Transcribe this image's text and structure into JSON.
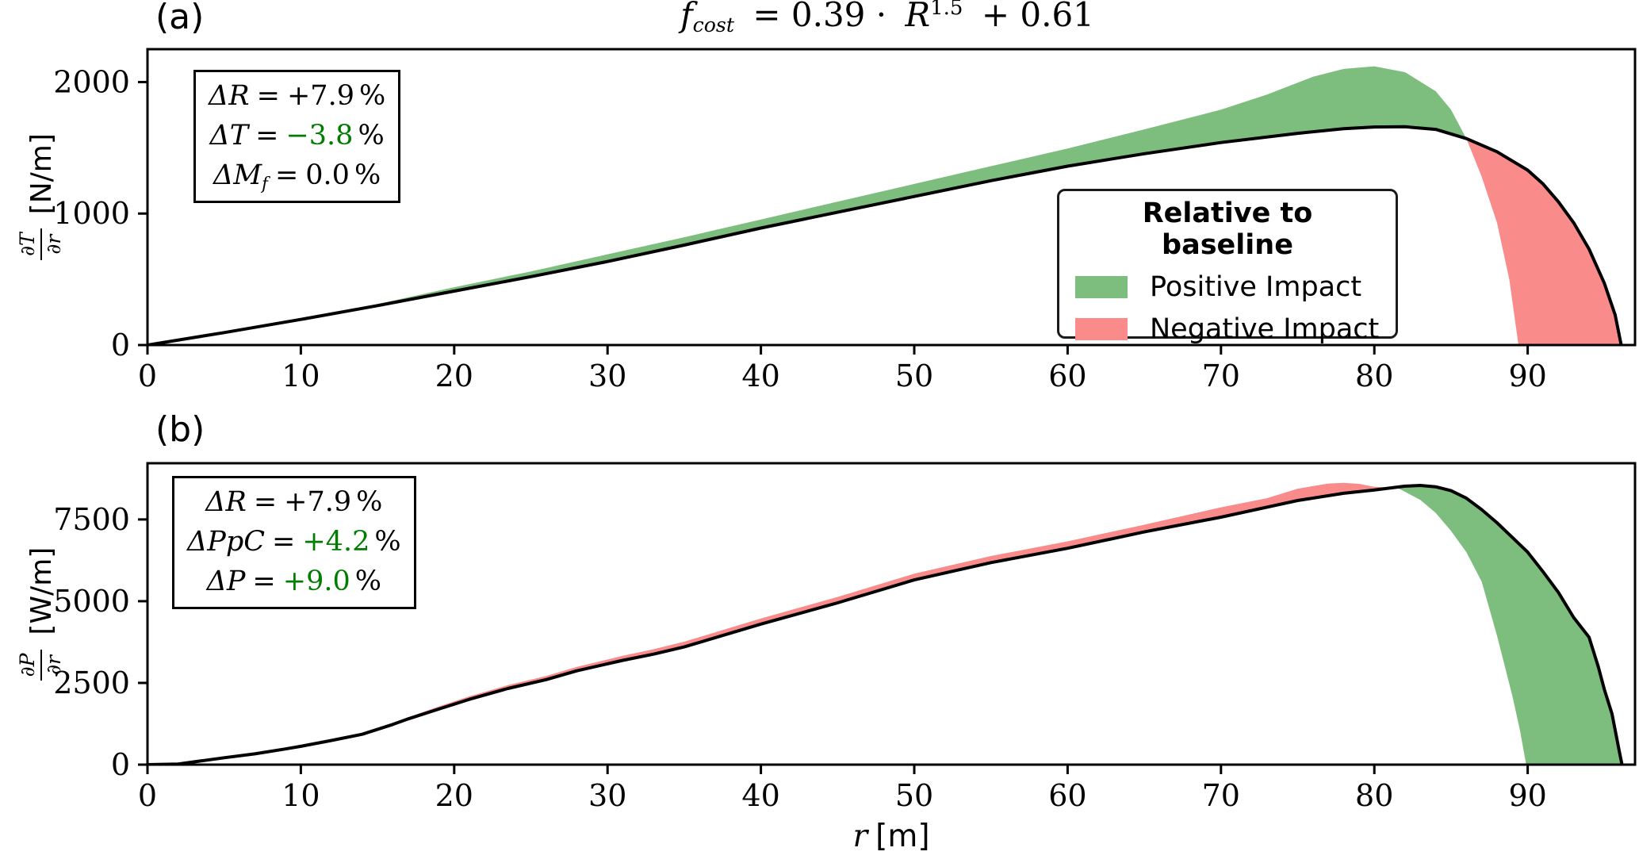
{
  "figure": {
    "title": {
      "lead": "f",
      "lead_sub": "cost",
      "eq": "= 0.39 ·",
      "rvar": "R",
      "tilde": "~",
      "exp": "1.5",
      "tail": "+ 0.61"
    },
    "xlabel": {
      "var": "r",
      "unit": "[m]"
    }
  },
  "colors": {
    "positive": "#7dbd7d",
    "negative": "#f98b8b",
    "design_line": "#000000",
    "annotation_green": "#007d00",
    "axis": "#000000",
    "background": "#ffffff"
  },
  "legend": {
    "title": "Relative to baseline",
    "position": "inside panel (a), right",
    "items": [
      {
        "label": "Positive Impact",
        "color_key": "positive"
      },
      {
        "label": "Negative Impact",
        "color_key": "negative"
      }
    ]
  },
  "chart_data": [
    {
      "type": "area",
      "label": "(a)",
      "ylabel": {
        "num": "∂T",
        "den": "∂r",
        "unit": "[N/m]"
      },
      "xlim": [
        0,
        97
      ],
      "ylim": [
        0,
        2250
      ],
      "xticks": [
        0,
        10,
        20,
        30,
        40,
        50,
        60,
        70,
        80,
        90
      ],
      "yticks": [
        0,
        1000,
        2000
      ],
      "grid": false,
      "positive_impact_when_design": "below",
      "annotation": [
        {
          "lhs": "ΔR",
          "sub": "",
          "eq": "=",
          "value": "+7.9",
          "unit": "%",
          "green": false
        },
        {
          "lhs": "ΔT",
          "sub": "",
          "eq": "=",
          "value": "−3.8",
          "unit": "%",
          "green": true
        },
        {
          "lhs": "ΔM",
          "sub": "f",
          "eq": "=",
          "value": "0.0",
          "unit": "%",
          "green": false
        }
      ],
      "series": [
        {
          "name": "baseline",
          "points": [
            [
              0,
              0
            ],
            [
              5,
              95
            ],
            [
              10,
              200
            ],
            [
              15,
              312
            ],
            [
              20,
              440
            ],
            [
              25,
              560
            ],
            [
              30,
              690
            ],
            [
              35,
              820
            ],
            [
              40,
              955
            ],
            [
              45,
              1090
            ],
            [
              50,
              1225
            ],
            [
              55,
              1360
            ],
            [
              60,
              1495
            ],
            [
              65,
              1640
            ],
            [
              70,
              1790
            ],
            [
              73,
              1905
            ],
            [
              76,
              2040
            ],
            [
              78,
              2100
            ],
            [
              80,
              2120
            ],
            [
              82,
              2075
            ],
            [
              84,
              1930
            ],
            [
              85,
              1790
            ],
            [
              86,
              1570
            ],
            [
              87,
              1280
            ],
            [
              88,
              930
            ],
            [
              88.8,
              500
            ],
            [
              89.4,
              0
            ]
          ]
        },
        {
          "name": "design",
          "points": [
            [
              0,
              0
            ],
            [
              5,
              95
            ],
            [
              10,
              195
            ],
            [
              15,
              300
            ],
            [
              20,
              410
            ],
            [
              25,
              520
            ],
            [
              30,
              635
            ],
            [
              35,
              760
            ],
            [
              40,
              890
            ],
            [
              45,
              1010
            ],
            [
              50,
              1130
            ],
            [
              55,
              1250
            ],
            [
              60,
              1360
            ],
            [
              65,
              1455
            ],
            [
              70,
              1540
            ],
            [
              75,
              1610
            ],
            [
              78,
              1645
            ],
            [
              80,
              1658
            ],
            [
              82,
              1660
            ],
            [
              84,
              1640
            ],
            [
              86,
              1570
            ],
            [
              88,
              1470
            ],
            [
              90,
              1330
            ],
            [
              91,
              1225
            ],
            [
              92,
              1090
            ],
            [
              93,
              930
            ],
            [
              94,
              730
            ],
            [
              95,
              470
            ],
            [
              95.7,
              230
            ],
            [
              96.1,
              0
            ]
          ]
        }
      ]
    },
    {
      "type": "area",
      "label": "(b)",
      "ylabel": {
        "num": "∂P",
        "den": "∂r",
        "unit": "[W/m]"
      },
      "xlim": [
        0,
        97
      ],
      "ylim": [
        0,
        9220
      ],
      "xticks": [
        0,
        10,
        20,
        30,
        40,
        50,
        60,
        70,
        80,
        90
      ],
      "yticks": [
        0,
        2500,
        5000,
        7500
      ],
      "grid": false,
      "positive_impact_when_design": "above",
      "annotation": [
        {
          "lhs": "ΔR",
          "sub": "",
          "eq": "=",
          "value": "+7.9",
          "unit": "%",
          "green": false
        },
        {
          "lhs": "ΔPpC",
          "sub": "",
          "eq": "=",
          "value": "+4.2",
          "unit": "%",
          "green": true
        },
        {
          "lhs": "ΔP",
          "sub": "",
          "eq": "=",
          "value": "+9.0",
          "unit": "%",
          "green": true
        }
      ],
      "series": [
        {
          "name": "baseline",
          "points": [
            [
              0,
              0
            ],
            [
              2,
              20
            ],
            [
              5,
              210
            ],
            [
              7,
              330
            ],
            [
              9,
              480
            ],
            [
              10,
              560
            ],
            [
              12,
              740
            ],
            [
              14,
              930
            ],
            [
              16,
              1230
            ],
            [
              17,
              1450
            ],
            [
              19,
              1780
            ],
            [
              21,
              2090
            ],
            [
              23.5,
              2430
            ],
            [
              26,
              2710
            ],
            [
              28,
              2990
            ],
            [
              31,
              3330
            ],
            [
              33,
              3530
            ],
            [
              35,
              3760
            ],
            [
              40,
              4470
            ],
            [
              45,
              5130
            ],
            [
              50,
              5840
            ],
            [
              55,
              6380
            ],
            [
              60,
              6830
            ],
            [
              65,
              7340
            ],
            [
              70,
              7870
            ],
            [
              73,
              8150
            ],
            [
              75,
              8440
            ],
            [
              77,
              8600
            ],
            [
              78,
              8620
            ],
            [
              79,
              8590
            ],
            [
              80,
              8500
            ],
            [
              81.5,
              8470
            ],
            [
              83,
              8100
            ],
            [
              84,
              7700
            ],
            [
              85,
              7150
            ],
            [
              86,
              6500
            ],
            [
              87,
              5600
            ],
            [
              88,
              3950
            ],
            [
              89,
              2100
            ],
            [
              89.5,
              1050
            ],
            [
              89.9,
              0
            ]
          ]
        },
        {
          "name": "design",
          "points": [
            [
              0,
              0
            ],
            [
              2,
              20
            ],
            [
              5,
              210
            ],
            [
              7,
              330
            ],
            [
              9,
              480
            ],
            [
              10,
              560
            ],
            [
              12,
              740
            ],
            [
              14,
              930
            ],
            [
              16,
              1230
            ],
            [
              17,
              1400
            ],
            [
              19,
              1700
            ],
            [
              21,
              2000
            ],
            [
              23.5,
              2330
            ],
            [
              26,
              2600
            ],
            [
              28,
              2870
            ],
            [
              31,
              3190
            ],
            [
              33,
              3380
            ],
            [
              35,
              3600
            ],
            [
              40,
              4300
            ],
            [
              45,
              4950
            ],
            [
              50,
              5650
            ],
            [
              55,
              6180
            ],
            [
              60,
              6620
            ],
            [
              65,
              7120
            ],
            [
              70,
              7570
            ],
            [
              75,
              8080
            ],
            [
              78,
              8300
            ],
            [
              80,
              8400
            ],
            [
              82,
              8520
            ],
            [
              83,
              8540
            ],
            [
              84,
              8500
            ],
            [
              85,
              8380
            ],
            [
              86,
              8150
            ],
            [
              87,
              7800
            ],
            [
              88,
              7400
            ],
            [
              89,
              6950
            ],
            [
              90,
              6500
            ],
            [
              91,
              5900
            ],
            [
              92,
              5270
            ],
            [
              93,
              4500
            ],
            [
              94,
              3900
            ],
            [
              94.6,
              3000
            ],
            [
              95,
              2300
            ],
            [
              95.5,
              1550
            ],
            [
              96,
              340
            ],
            [
              96.15,
              0
            ]
          ]
        }
      ]
    }
  ]
}
